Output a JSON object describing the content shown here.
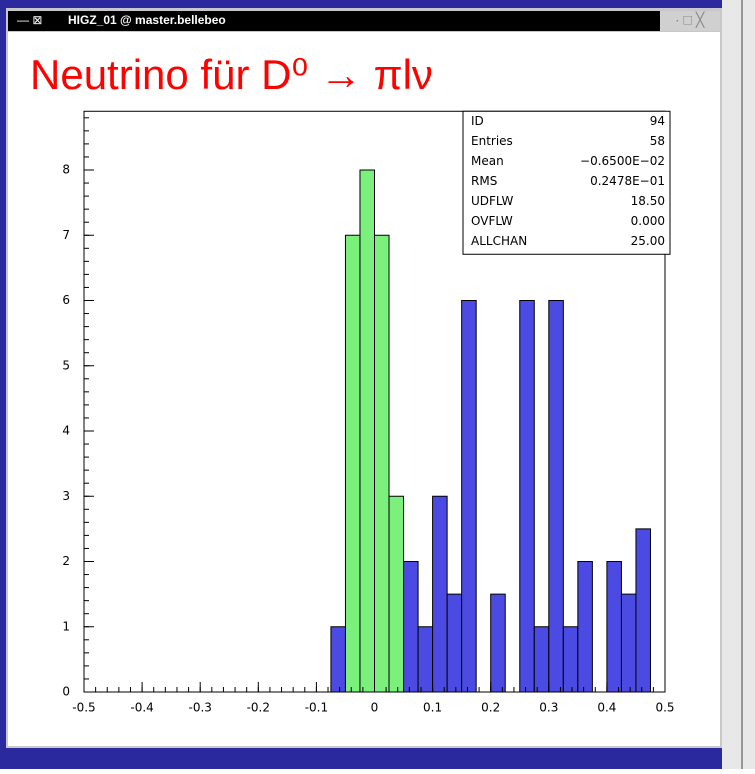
{
  "window": {
    "title": "HIGZ_01 @ master.bellebeo"
  },
  "chart_data": {
    "type": "histogram",
    "title": "Neutrino für D⁰ → πlν",
    "bins": [
      -0.075,
      -0.05,
      -0.025,
      0,
      0.025,
      0.05,
      0.075,
      0.1,
      0.125,
      0.15,
      0.175,
      0.2,
      0.225,
      0.25,
      0.275,
      0.3,
      0.325,
      0.35,
      0.375,
      0.4,
      0.425,
      0.45,
      0.475
    ],
    "series": [
      {
        "color": "#4b4be3",
        "values": [
          1,
          0,
          0,
          0,
          0,
          2,
          1,
          3,
          1.5,
          6,
          0,
          1.5,
          0,
          6,
          1,
          6,
          1,
          2,
          0,
          2,
          1.5,
          2.5
        ]
      },
      {
        "color": "#7cf07c",
        "values": [
          0,
          7,
          8,
          7,
          3,
          0,
          0,
          0,
          0,
          0,
          0,
          0,
          0,
          0,
          0,
          0,
          0,
          0,
          0,
          0,
          0,
          0
        ]
      }
    ],
    "xlim": [
      -0.5,
      0.5
    ],
    "xticks": [
      -0.5,
      -0.4,
      -0.3,
      -0.2,
      -0.1,
      0,
      0.1,
      0.2,
      0.3,
      0.4,
      0.5
    ],
    "ylim": [
      0,
      8.9
    ],
    "yticks": [
      0,
      1,
      2,
      3,
      4,
      5,
      6,
      7,
      8
    ],
    "stats": [
      [
        "ID",
        94
      ],
      [
        "Entries",
        58
      ],
      [
        "Mean",
        "−0.6500E−02"
      ],
      [
        "RMS",
        "0.2478E−01"
      ],
      [
        "UDFLW",
        "18.50"
      ],
      [
        "OVFLW",
        "0.000"
      ],
      [
        "ALLCHAN",
        "25.00"
      ]
    ]
  }
}
